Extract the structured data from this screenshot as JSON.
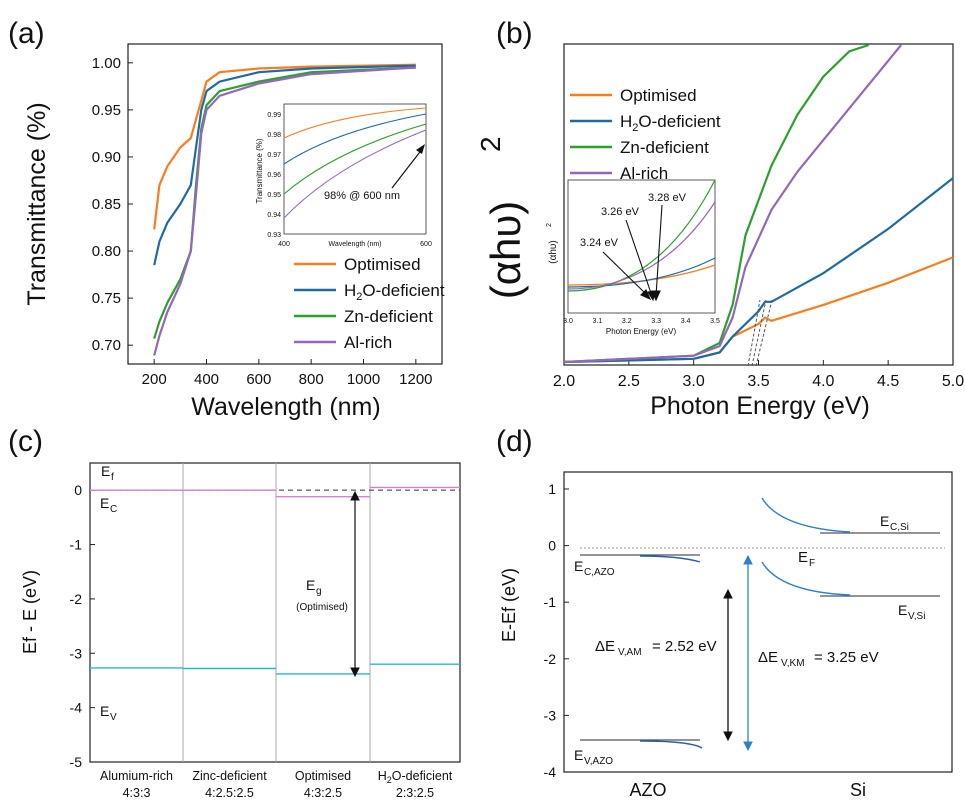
{
  "panels": {
    "a": {
      "label": "(a)",
      "ylabel": "Transmittance (%)",
      "xlabel": "Wavelength (nm)",
      "xticks": [
        "200",
        "400",
        "600",
        "800",
        "1000",
        "1200"
      ],
      "yticks": [
        "0.70",
        "0.75",
        "0.80",
        "0.85",
        "0.90",
        "0.95",
        "1.00"
      ],
      "legend": [
        "Optimised",
        "H2O-deficient",
        "Zn-deficient",
        "Al-rich"
      ],
      "inset": {
        "ylabel": "Transmittance (%)",
        "xlabel": "Wavelength (nm)",
        "xticks": [
          "400",
          "600"
        ],
        "yticks": [
          "0.93",
          "0.94",
          "0.95",
          "0.96",
          "0.97",
          "0.98",
          "0.99"
        ],
        "annotation": "98% @ 600 nm"
      }
    },
    "b": {
      "label": "(b)",
      "ylabel": "(αhυ)",
      "ylabel_sup": "2",
      "xlabel": "Photon Energy (eV)",
      "xticks": [
        "2.0",
        "2.5",
        "3.0",
        "3.5",
        "4.0",
        "4.5",
        "5.0"
      ],
      "legend": [
        "Optimised",
        "H2O-deficient",
        "Zn-deficient",
        "Al-rich"
      ],
      "inset": {
        "ylabel": "(αhυ)",
        "ylabel_sup": "2",
        "xlabel": "Photon Energy (eV)",
        "xticks": [
          "3.0",
          "3.1",
          "3.2",
          "3.3",
          "3.4",
          "3.5"
        ],
        "annotations": [
          "3.24 eV",
          "3.26 eV",
          "3.28 eV"
        ]
      }
    },
    "c": {
      "label": "(c)",
      "ylabel": "Ef - E (eV)",
      "yticks": [
        "0",
        "-1",
        "-2",
        "-3",
        "-4",
        "-5"
      ],
      "categories": [
        {
          "name": "Alumium-rich",
          "ratio": "4:3:3"
        },
        {
          "name": "Zinc-deficient",
          "ratio": "4:2.5:2.5"
        },
        {
          "name": "Optimised",
          "ratio": "4:3:2.5"
        },
        {
          "name": "H2O-deficient",
          "ratio": "2:3:2.5"
        }
      ],
      "label_ef": "E",
      "label_ef_sub": "f",
      "label_ec": "E",
      "label_ec_sub": "C",
      "label_ev": "E",
      "label_ev_sub": "V",
      "label_eg": "E",
      "label_eg_sub": "g",
      "label_eg_note": "(Optimised)"
    },
    "d": {
      "label": "(d)",
      "ylabel": "E-Ef (eV)",
      "yticks": [
        "1",
        "0",
        "-1",
        "-2",
        "-3",
        "-4"
      ],
      "xcategories": [
        "AZO",
        "Si"
      ],
      "label_ef": "E",
      "label_ef_sub": "F",
      "label_ec_si": "E",
      "label_ec_si_sub": "C,Si",
      "label_ev_si": "E",
      "label_ev_si_sub": "V,Si",
      "label_ec_azo": "E",
      "label_ec_azo_sub": "C,AZO",
      "label_ev_azo": "E",
      "label_ev_azo_sub": "V,AZO",
      "delta_am": "ΔE",
      "delta_am_sub": "V,AM",
      "delta_am_val": "= 2.52 eV",
      "delta_km": "ΔE",
      "delta_km_sub": "V,KM",
      "delta_km_val": "= 3.25 eV"
    }
  },
  "colors": {
    "optimised": "#f57f20",
    "h2o": "#1f6aa5",
    "zn": "#2ca02c",
    "al": "#9467bd",
    "ec_pink": "#d77fcf",
    "ev_teal": "#2bb7c7",
    "km_blue": "#2f7fcf"
  },
  "chart_data": [
    {
      "type": "line",
      "panel": "a",
      "xlabel": "Wavelength (nm)",
      "ylabel": "Transmittance (%)",
      "xlim": [
        100,
        1300
      ],
      "ylim": [
        0.68,
        1.02
      ],
      "series": [
        {
          "name": "Optimised",
          "x": [
            200,
            220,
            250,
            300,
            340,
            360,
            380,
            400,
            450,
            600,
            800,
            1200
          ],
          "values": [
            0.823,
            0.87,
            0.89,
            0.91,
            0.92,
            0.94,
            0.96,
            0.98,
            0.99,
            0.994,
            0.996,
            0.998
          ]
        },
        {
          "name": "H2O-deficient",
          "x": [
            200,
            220,
            250,
            300,
            340,
            360,
            380,
            400,
            450,
            600,
            800,
            1200
          ],
          "values": [
            0.785,
            0.81,
            0.83,
            0.85,
            0.87,
            0.91,
            0.95,
            0.97,
            0.98,
            0.99,
            0.994,
            0.997
          ]
        },
        {
          "name": "Zn-deficient",
          "x": [
            200,
            220,
            250,
            300,
            340,
            360,
            380,
            400,
            450,
            600,
            800,
            1200
          ],
          "values": [
            0.707,
            0.725,
            0.745,
            0.77,
            0.8,
            0.87,
            0.93,
            0.955,
            0.97,
            0.98,
            0.99,
            0.995
          ]
        },
        {
          "name": "Al-rich",
          "x": [
            200,
            220,
            250,
            300,
            340,
            360,
            380,
            400,
            450,
            600,
            800,
            1200
          ],
          "values": [
            0.689,
            0.71,
            0.735,
            0.765,
            0.8,
            0.86,
            0.925,
            0.95,
            0.965,
            0.978,
            0.988,
            0.995
          ]
        }
      ]
    },
    {
      "type": "line",
      "panel": "b",
      "xlabel": "Photon Energy (eV)",
      "ylabel": "(αhυ)2",
      "xlim": [
        2.0,
        5.0
      ],
      "series": [
        {
          "name": "Optimised",
          "x": [
            2.0,
            3.0,
            3.2,
            3.3,
            3.5,
            3.55,
            3.6,
            4.0,
            4.5,
            5.0
          ],
          "values": [
            0,
            0.01,
            0.03,
            0.08,
            0.12,
            0.14,
            0.13,
            0.18,
            0.25,
            0.33
          ]
        },
        {
          "name": "H2O-deficient",
          "x": [
            2.0,
            3.0,
            3.2,
            3.3,
            3.5,
            3.55,
            3.6,
            4.0,
            4.5,
            5.0
          ],
          "values": [
            0,
            0.01,
            0.03,
            0.08,
            0.16,
            0.19,
            0.19,
            0.28,
            0.42,
            0.58
          ]
        },
        {
          "name": "Zn-deficient",
          "x": [
            2.0,
            3.0,
            3.2,
            3.3,
            3.4,
            3.6,
            3.8,
            4.0,
            4.2,
            4.35
          ],
          "values": [
            0,
            0.02,
            0.06,
            0.18,
            0.4,
            0.62,
            0.78,
            0.9,
            0.98,
            1.0
          ]
        },
        {
          "name": "Al-rich",
          "x": [
            2.0,
            3.0,
            3.2,
            3.3,
            3.4,
            3.6,
            3.8,
            4.0,
            4.3,
            4.6
          ],
          "values": [
            0,
            0.02,
            0.05,
            0.14,
            0.3,
            0.48,
            0.6,
            0.7,
            0.85,
            1.0
          ]
        }
      ]
    },
    {
      "type": "bar",
      "panel": "c",
      "ylabel": "Ef - E (eV)",
      "ylim": [
        -5,
        0.5
      ],
      "categories": [
        "Alumium-rich",
        "Zinc-deficient",
        "Optimised",
        "H2O-deficient"
      ],
      "series": [
        {
          "name": "EC",
          "values": [
            0.0,
            0.0,
            -0.12,
            0.05
          ]
        },
        {
          "name": "EV",
          "values": [
            -3.27,
            -3.28,
            -3.38,
            -3.2
          ]
        }
      ]
    },
    {
      "type": "line",
      "panel": "d",
      "ylabel": "E-Ef (eV)",
      "ylim": [
        -4,
        1.3
      ],
      "series": [
        {
          "name": "EC,AZO",
          "values": [
            -0.12
          ]
        },
        {
          "name": "EV,AZO",
          "values": [
            -3.37
          ]
        },
        {
          "name": "EC,Si",
          "values": [
            0.25
          ]
        },
        {
          "name": "EV,Si",
          "values": [
            -0.85
          ]
        }
      ]
    }
  ]
}
